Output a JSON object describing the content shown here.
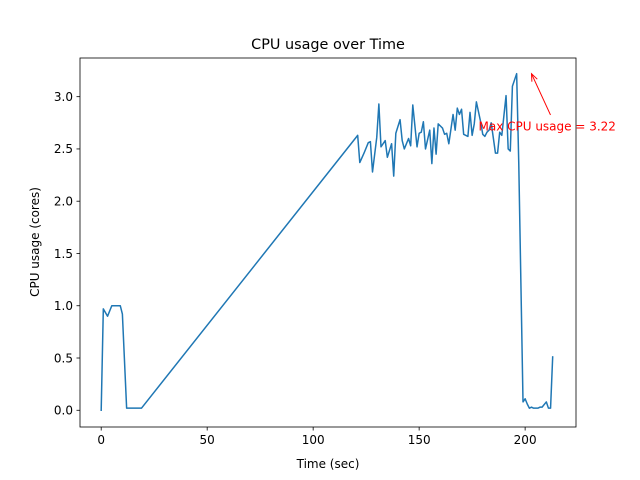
{
  "chart_data": {
    "type": "line",
    "title": "CPU usage over Time",
    "xlabel": "Time (sec)",
    "ylabel": "CPU usage (cores)",
    "xlim": [
      -10,
      224
    ],
    "ylim": [
      -0.16,
      3.37
    ],
    "xticks": [
      0,
      50,
      100,
      150,
      200
    ],
    "xtick_labels": [
      "0",
      "50",
      "100",
      "150",
      "200"
    ],
    "yticks": [
      0.0,
      0.5,
      1.0,
      1.5,
      2.0,
      2.5,
      3.0
    ],
    "ytick_labels": [
      "0.0",
      "0.5",
      "1.0",
      "1.5",
      "2.0",
      "2.5",
      "3.0"
    ],
    "grid": false,
    "series": [
      {
        "color": "#1f77b4",
        "x": [
          0,
          1,
          3,
          5,
          7,
          9,
          10,
          12,
          19,
          121,
          122,
          124,
          126,
          127,
          128,
          130,
          131,
          132,
          134,
          135,
          137,
          138,
          139,
          141,
          142,
          143,
          145,
          146,
          147,
          149,
          150,
          151,
          152,
          153,
          155,
          156,
          157,
          158,
          159,
          161,
          162,
          163,
          164,
          166,
          167,
          168,
          169,
          170,
          171,
          173,
          174,
          175,
          176,
          177,
          179,
          180,
          181,
          182,
          183,
          184,
          186,
          187,
          188,
          189,
          191,
          192,
          193,
          194,
          196,
          197,
          198,
          199,
          200,
          201,
          202,
          203,
          204,
          205,
          206,
          207,
          208,
          210,
          211,
          212,
          213
        ],
        "y": [
          0.0,
          0.97,
          0.9,
          1.0,
          1.0,
          1.0,
          0.92,
          0.02,
          0.02,
          2.63,
          2.37,
          2.46,
          2.56,
          2.57,
          2.28,
          2.61,
          2.93,
          2.52,
          2.58,
          2.42,
          2.55,
          2.24,
          2.65,
          2.78,
          2.58,
          2.5,
          2.6,
          2.53,
          2.92,
          2.52,
          2.65,
          2.66,
          2.76,
          2.5,
          2.68,
          2.36,
          2.7,
          2.45,
          2.74,
          2.7,
          2.64,
          2.65,
          2.55,
          2.83,
          2.68,
          2.89,
          2.83,
          2.88,
          2.64,
          2.62,
          2.85,
          2.63,
          2.74,
          2.95,
          2.76,
          2.64,
          2.62,
          2.66,
          2.68,
          2.75,
          2.46,
          2.46,
          2.66,
          2.63,
          3.01,
          2.5,
          2.48,
          3.1,
          3.22,
          2.36,
          1.22,
          0.08,
          0.11,
          0.06,
          0.02,
          0.03,
          0.02,
          0.02,
          0.02,
          0.03,
          0.03,
          0.08,
          0.02,
          0.02,
          0.51
        ]
      }
    ],
    "annotation": {
      "text": "Max CPU usage = 3.22",
      "color": "#ff0000",
      "xy": [
        203,
        3.22
      ],
      "xytext": [
        178,
        2.72
      ]
    }
  }
}
